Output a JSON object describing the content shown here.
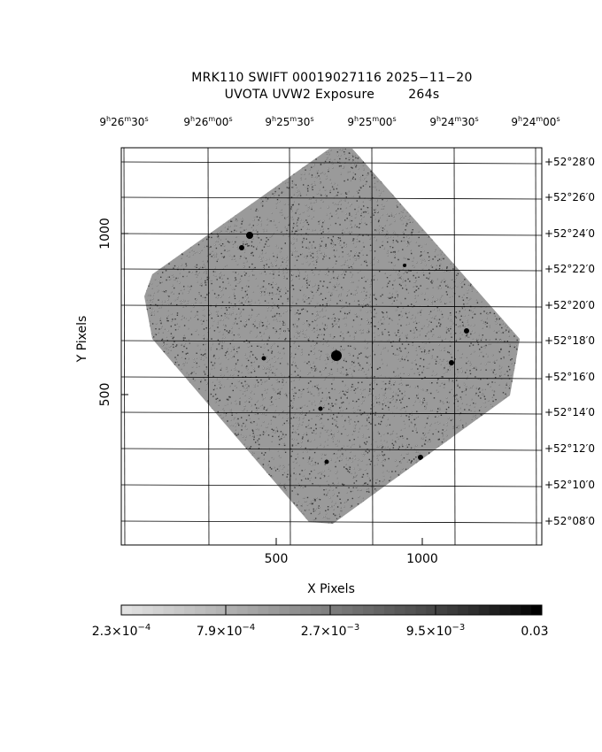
{
  "title": {
    "line1": "MRK110 SWIFT 00019027116 2025−11−20",
    "line2_left": "UVOTA UVW2 Exposure",
    "line2_right": "264s"
  },
  "top_axis": {
    "ticks": [
      {
        "h": "9",
        "m": "26",
        "s": "30"
      },
      {
        "h": "9",
        "m": "26",
        "s": "00"
      },
      {
        "h": "9",
        "m": "25",
        "s": "30"
      },
      {
        "h": "9",
        "m": "25",
        "s": "00"
      },
      {
        "h": "9",
        "m": "24",
        "s": "30"
      },
      {
        "h": "9",
        "m": "24",
        "s": "00"
      }
    ]
  },
  "right_axis": {
    "ticks": [
      "+52°28′0",
      "+52°26′0",
      "+52°24′0",
      "+52°22′0",
      "+52°20′0",
      "+52°18′0",
      "+52°16′0",
      "+52°14′0",
      "+52°12′0",
      "+52°10′0",
      "+52°08′0"
    ]
  },
  "x_axis": {
    "label": "X Pixels",
    "ticks": [
      "500",
      "1000"
    ]
  },
  "y_axis": {
    "label": "Y Pixels",
    "ticks": [
      "1000",
      "500"
    ]
  },
  "colorbar": {
    "labels": [
      {
        "base": "2.3×10",
        "exp": "−4"
      },
      {
        "base": "7.9×10",
        "exp": "−4"
      },
      {
        "base": "2.7×10",
        "exp": "−3"
      },
      {
        "base": "9.5×10",
        "exp": "−3"
      },
      {
        "base": "0.03",
        "exp": ""
      }
    ]
  },
  "colors": {
    "background": "#ffffff",
    "ink": "#000000",
    "noise": "#3c3c3c"
  }
}
